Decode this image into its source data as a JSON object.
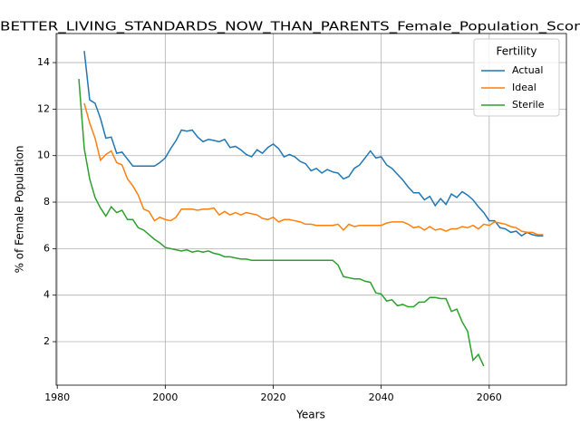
{
  "chart_data": {
    "type": "line",
    "title": "BETTER_LIVING_STANDARDS_NOW_THAN_PARENTS_Female_Population_Scor",
    "x_label": "Years",
    "y_label": "% of Female Population",
    "legend_title": "Fertility",
    "legend": "upper right",
    "grid": true,
    "xlim": [
      1979.8,
      2074.3
    ],
    "xticks": [
      1980,
      2000,
      2020,
      2040,
      2060
    ],
    "ylim": [
      0.13,
      15.25
    ],
    "yticks": [
      2,
      4,
      6,
      8,
      10,
      12,
      14
    ],
    "x": [
      1984,
      1985,
      1986,
      1987,
      1988,
      1989,
      1990,
      1991,
      1992,
      1993,
      1994,
      1995,
      1996,
      1997,
      1998,
      1999,
      2000,
      2001,
      2002,
      2003,
      2004,
      2005,
      2006,
      2007,
      2008,
      2009,
      2010,
      2011,
      2012,
      2013,
      2014,
      2015,
      2016,
      2017,
      2018,
      2019,
      2020,
      2021,
      2022,
      2023,
      2024,
      2025,
      2026,
      2027,
      2028,
      2029,
      2030,
      2031,
      2032,
      2033,
      2034,
      2035,
      2036,
      2037,
      2038,
      2039,
      2040,
      2041,
      2042,
      2043,
      2044,
      2045,
      2046,
      2047,
      2048,
      2049,
      2050,
      2051,
      2052,
      2053,
      2054,
      2055,
      2056,
      2057,
      2058,
      2059,
      2060,
      2061,
      2062,
      2063,
      2064,
      2065,
      2066,
      2067,
      2068,
      2069,
      2070
    ],
    "series": [
      {
        "name": "Actual",
        "color": "#1f77b4",
        "values": [
          null,
          14.5,
          12.4,
          12.25,
          11.6,
          10.75,
          10.8,
          10.1,
          10.15,
          9.85,
          9.55,
          9.55,
          9.55,
          9.55,
          9.55,
          9.7,
          9.9,
          10.3,
          10.65,
          11.1,
          11.05,
          11.1,
          10.8,
          10.6,
          10.7,
          10.65,
          10.6,
          10.7,
          10.35,
          10.4,
          10.25,
          10.05,
          9.95,
          10.25,
          10.1,
          10.35,
          10.5,
          10.3,
          9.95,
          10.05,
          9.95,
          9.75,
          9.65,
          9.35,
          9.45,
          9.25,
          9.4,
          9.3,
          9.25,
          9.0,
          9.1,
          9.45,
          9.6,
          9.9,
          10.2,
          9.9,
          9.95,
          9.6,
          9.45,
          9.2,
          8.95,
          8.65,
          8.4,
          8.4,
          8.1,
          8.25,
          7.85,
          8.15,
          7.9,
          8.35,
          8.2,
          8.45,
          8.3,
          8.1,
          7.8,
          7.55,
          7.2,
          7.2,
          6.9,
          6.85,
          6.7,
          6.75,
          6.55,
          6.7,
          6.6,
          6.55,
          6.55
        ]
      },
      {
        "name": "Ideal",
        "color": "#ff7f0e",
        "values": [
          null,
          12.25,
          11.4,
          10.75,
          9.8,
          10.05,
          10.2,
          9.7,
          9.6,
          9.0,
          8.7,
          8.3,
          7.7,
          7.6,
          7.2,
          7.35,
          7.25,
          7.2,
          7.35,
          7.7,
          7.7,
          7.7,
          7.65,
          7.7,
          7.7,
          7.75,
          7.45,
          7.6,
          7.45,
          7.55,
          7.45,
          7.55,
          7.5,
          7.45,
          7.3,
          7.25,
          7.35,
          7.15,
          7.25,
          7.25,
          7.2,
          7.15,
          7.05,
          7.05,
          7.0,
          7.0,
          7.0,
          7.0,
          7.05,
          6.8,
          7.05,
          6.95,
          7.0,
          7.0,
          7.0,
          7.0,
          7.0,
          7.1,
          7.15,
          7.15,
          7.15,
          7.05,
          6.9,
          6.95,
          6.8,
          6.95,
          6.8,
          6.85,
          6.75,
          6.85,
          6.85,
          6.95,
          6.9,
          7.0,
          6.85,
          7.05,
          7.0,
          7.15,
          7.1,
          7.05,
          6.95,
          6.9,
          6.75,
          6.7,
          6.7,
          6.6,
          6.6
        ]
      },
      {
        "name": "Sterile",
        "color": "#2ca02c",
        "values": [
          13.3,
          10.3,
          9.0,
          8.2,
          7.75,
          7.4,
          7.8,
          7.55,
          7.65,
          7.25,
          7.25,
          6.9,
          6.8,
          6.6,
          6.4,
          6.25,
          6.05,
          6.0,
          5.95,
          5.9,
          5.95,
          5.85,
          5.9,
          5.85,
          5.9,
          5.8,
          5.75,
          5.65,
          5.65,
          5.6,
          5.55,
          5.55,
          5.5,
          5.5,
          5.5,
          5.5,
          5.5,
          5.5,
          5.5,
          5.5,
          5.5,
          5.5,
          5.5,
          5.5,
          5.5,
          5.5,
          5.5,
          5.5,
          5.3,
          4.8,
          4.75,
          4.7,
          4.7,
          4.6,
          4.55,
          4.1,
          4.05,
          3.75,
          3.8,
          3.55,
          3.6,
          3.5,
          3.5,
          3.7,
          3.7,
          3.9,
          3.9,
          3.85,
          3.85,
          3.3,
          3.4,
          2.85,
          2.45,
          1.2,
          1.45,
          0.95,
          null,
          null,
          null,
          null,
          null,
          null,
          null,
          null,
          null,
          null,
          null
        ]
      }
    ]
  }
}
